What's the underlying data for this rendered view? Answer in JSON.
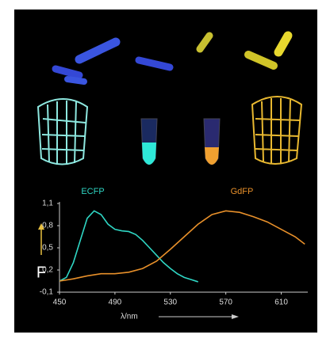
{
  "chart_data": {
    "type": "line",
    "series": [
      {
        "name": "ECFP",
        "color": "#2fd6c4",
        "x": [
          450,
          455,
          460,
          465,
          470,
          475,
          480,
          485,
          490,
          495,
          500,
          505,
          510,
          515,
          520,
          525,
          530,
          535,
          540,
          545,
          550
        ],
        "values": [
          0.05,
          0.1,
          0.3,
          0.6,
          0.9,
          1.0,
          0.95,
          0.82,
          0.75,
          0.73,
          0.72,
          0.68,
          0.6,
          0.5,
          0.4,
          0.3,
          0.22,
          0.15,
          0.1,
          0.07,
          0.04
        ]
      },
      {
        "name": "GdFP",
        "color": "#e8902a",
        "x": [
          450,
          460,
          470,
          480,
          490,
          500,
          510,
          520,
          530,
          540,
          550,
          560,
          570,
          580,
          590,
          600,
          610,
          620,
          627
        ],
        "values": [
          0.05,
          0.08,
          0.12,
          0.15,
          0.15,
          0.17,
          0.22,
          0.32,
          0.48,
          0.65,
          0.82,
          0.95,
          1.0,
          0.98,
          0.92,
          0.85,
          0.75,
          0.65,
          0.55
        ]
      }
    ],
    "x_label": "λ/nm",
    "y_label": "F",
    "xlim": [
      450,
      628
    ],
    "xticks": [
      450,
      490,
      530,
      570,
      610
    ],
    "ylim": [
      -0.1,
      1.1
    ],
    "yticks": [
      {
        "value": 1.1,
        "label": "1,1"
      },
      {
        "value": 0.8,
        "label": "0,8"
      },
      {
        "value": 0.5,
        "label": "0,5"
      },
      {
        "value": 0.2,
        "label": "0,2"
      },
      {
        "value": -0.1,
        "label": "-0,1"
      }
    ]
  }
}
